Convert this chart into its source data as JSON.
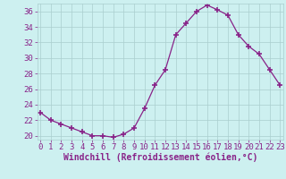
{
  "x": [
    0,
    1,
    2,
    3,
    4,
    5,
    6,
    7,
    8,
    9,
    10,
    11,
    12,
    13,
    14,
    15,
    16,
    17,
    18,
    19,
    20,
    21,
    22,
    23
  ],
  "y": [
    23.0,
    22.0,
    21.5,
    21.0,
    20.5,
    20.0,
    20.0,
    19.8,
    20.2,
    21.0,
    23.5,
    26.5,
    28.5,
    33.0,
    34.5,
    36.0,
    36.8,
    36.2,
    35.5,
    33.0,
    31.5,
    30.5,
    28.5,
    26.5
  ],
  "line_color": "#882288",
  "marker": "+",
  "marker_size": 4,
  "marker_lw": 1.2,
  "bg_color": "#cdf0f0",
  "grid_color": "#aacece",
  "tick_color": "#882288",
  "label_color": "#882288",
  "xlabel": "Windchill (Refroidissement éolien,°C)",
  "ylim": [
    19.5,
    37.0
  ],
  "xlim": [
    -0.3,
    23.3
  ],
  "yticks": [
    20,
    22,
    24,
    26,
    28,
    30,
    32,
    34,
    36
  ],
  "label_fontsize": 7,
  "tick_fontsize": 6.5
}
